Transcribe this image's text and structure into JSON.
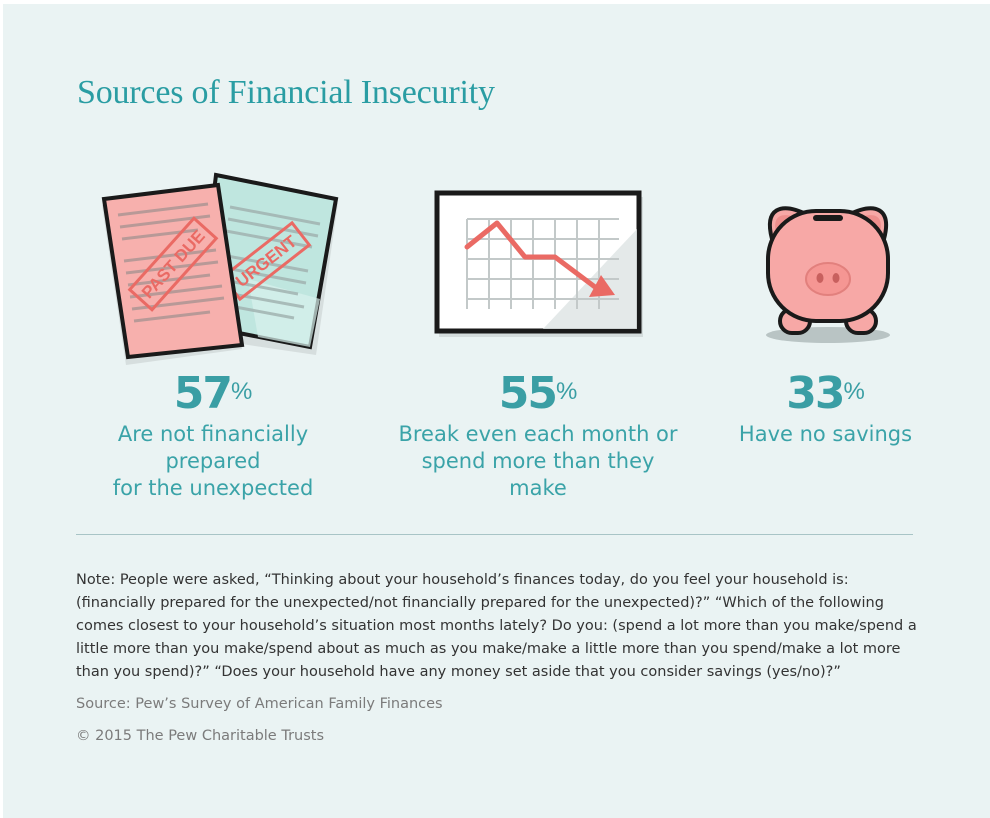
{
  "title": "Sources of Financial Insecurity",
  "stats": [
    {
      "value": "57",
      "unit": "%",
      "caption_line1": "Are not financially prepared",
      "caption_line2": "for the unexpected",
      "icon": "bills-icon",
      "stamp1": "PAST DUE",
      "stamp2": "URGENT"
    },
    {
      "value": "55",
      "unit": "%",
      "caption_line1": "Break even each month or",
      "caption_line2": "spend more than they make",
      "icon": "declining-chart-icon"
    },
    {
      "value": "33",
      "unit": "%",
      "caption_line1": "Have no savings",
      "icon": "piggy-bank-icon"
    }
  ],
  "note": "Note: People were asked, “Thinking about your household’s finances today, do you feel your household is: (financially prepared for the unexpected/not financially prepared for the unexpected)?” “Which of the following comes closest to your household’s situation most months lately? Do you: (spend a lot more than you make/spend a little more than you make/spend about as much as you make/make a little more than you spend/make a lot more than you spend)?” “Does your household have any money set aside that you consider savings (yes/no)?”",
  "source": "Source: Pew’s Survey of American Family Finances",
  "copyright": "© 2015 The Pew Charitable Trusts",
  "colors": {
    "background": "#eaf3f3",
    "teal": "#3aa3a8",
    "pink": "#f7b0ad",
    "mint": "#bfe6df",
    "stamp_red": "#ea6a64",
    "outline": "#1a1a1a"
  }
}
